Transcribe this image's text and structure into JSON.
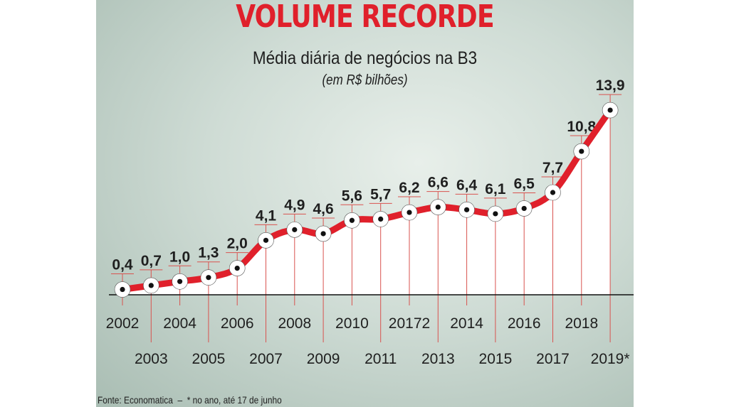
{
  "header": {
    "title": "VOLUME RECORDE",
    "subtitle": "Média diária de negócios na B3",
    "unit": "(em R$ bilhões)"
  },
  "footer": {
    "source": "Fonte: Economatica",
    "separator": "–",
    "note": "* no ano, até 17 de junho"
  },
  "colors": {
    "line": "#e0202b",
    "area": "#ffffff",
    "guide": "#d9534f",
    "marker_fill": "#ffffff",
    "marker_dot": "#111111"
  },
  "chart_data": {
    "type": "area",
    "title": "Média diária de negócios na B3",
    "ylabel": "(em R$ bilhões)",
    "xlabel": "",
    "ylim": [
      0,
      14
    ],
    "categories": [
      "2002",
      "2003",
      "2004",
      "2005",
      "2006",
      "2007",
      "2008",
      "2009",
      "2010",
      "2011",
      "20172",
      "2013",
      "2014",
      "2015",
      "2016",
      "2017",
      "2018",
      "2019*"
    ],
    "value_labels": [
      "0,4",
      "0,7",
      "1,0",
      "1,3",
      "2,0",
      "4,1",
      "4,9",
      "4,6",
      "5,6",
      "5,7",
      "6,2",
      "6,6",
      "6,4",
      "6,1",
      "6,5",
      "7,7",
      "10,8",
      "13,9"
    ],
    "values": [
      0.4,
      0.7,
      1.0,
      1.3,
      2.0,
      4.1,
      4.9,
      4.6,
      5.6,
      5.7,
      6.2,
      6.6,
      6.4,
      6.1,
      6.5,
      7.7,
      10.8,
      13.9
    ]
  }
}
